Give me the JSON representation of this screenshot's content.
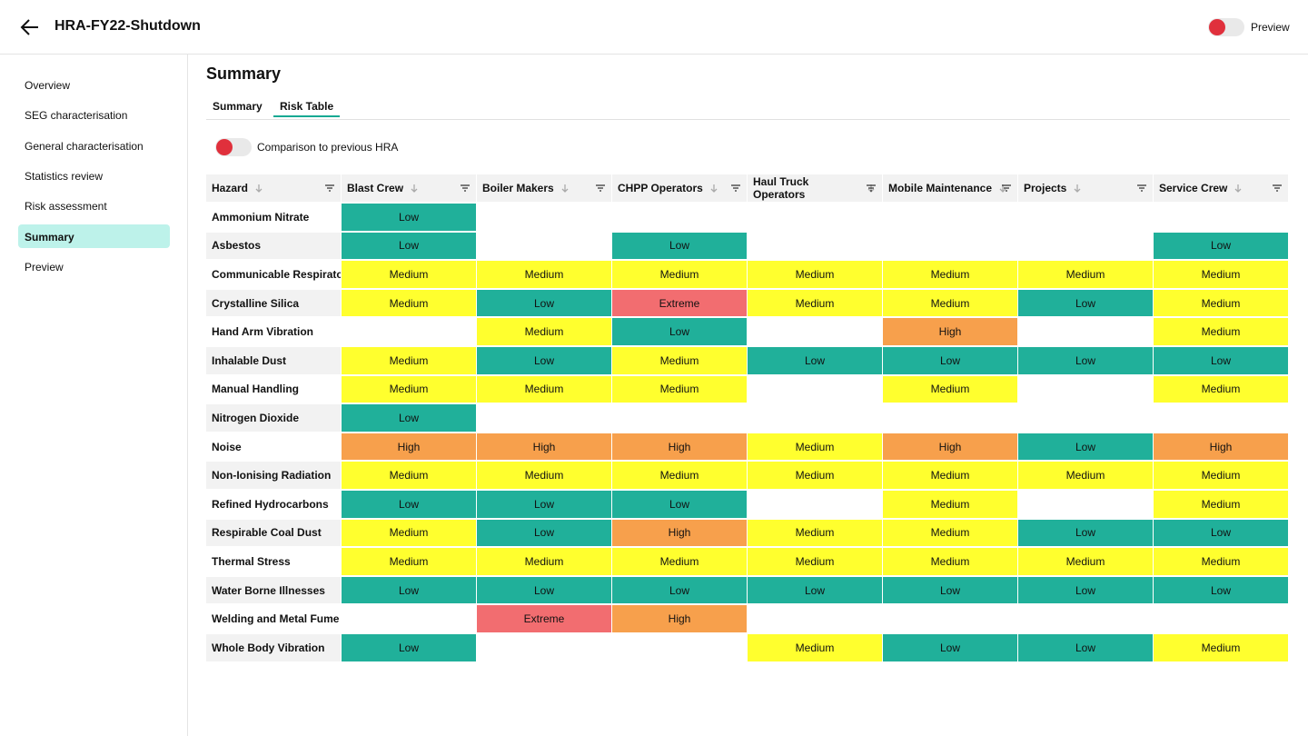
{
  "header": {
    "title": "HRA-FY22-Shutdown",
    "preview_label": "Preview"
  },
  "nav": {
    "items": [
      "Overview",
      "SEG characterisation",
      "General characterisation",
      "Statistics review",
      "Risk assessment",
      "Summary",
      "Preview"
    ],
    "active": 5
  },
  "page": {
    "title": "Summary",
    "tabs": [
      "Summary",
      "Risk Table"
    ],
    "active_tab": 1,
    "comparison_toggle": "Comparison to previous HRA"
  },
  "risk_colors": {
    "Low": "#20b09a",
    "Medium": "#ffff2e",
    "High": "#f7a04c",
    "Extreme": "#f26d70"
  },
  "table": {
    "columns": [
      "Hazard",
      "Blast Crew",
      "Boiler Makers",
      "CHPP Operators",
      "Haul Truck Operators",
      "Mobile Maintenance",
      "Projects",
      "Service Crew"
    ],
    "rows": [
      [
        "Ammonium Nitrate",
        "Low",
        null,
        null,
        null,
        null,
        null,
        null
      ],
      [
        "Asbestos",
        "Low",
        null,
        "Low",
        null,
        null,
        null,
        "Low"
      ],
      [
        "Communicable Respirator",
        "Medium",
        "Medium",
        "Medium",
        "Medium",
        "Medium",
        "Medium",
        "Medium"
      ],
      [
        "Crystalline Silica",
        "Medium",
        "Low",
        "Extreme",
        "Medium",
        "Medium",
        "Low",
        "Medium"
      ],
      [
        "Hand Arm Vibration",
        null,
        "Medium",
        "Low",
        null,
        "High",
        null,
        "Medium"
      ],
      [
        "Inhalable Dust",
        "Medium",
        "Low",
        "Medium",
        "Low",
        "Low",
        "Low",
        "Low"
      ],
      [
        "Manual Handling",
        "Medium",
        "Medium",
        "Medium",
        null,
        "Medium",
        null,
        "Medium"
      ],
      [
        "Nitrogen Dioxide",
        "Low",
        null,
        null,
        null,
        null,
        null,
        null
      ],
      [
        "Noise",
        "High",
        "High",
        "High",
        "Medium",
        "High",
        "Low",
        "High"
      ],
      [
        "Non-Ionising Radiation",
        "Medium",
        "Medium",
        "Medium",
        "Medium",
        "Medium",
        "Medium",
        "Medium"
      ],
      [
        "Refined Hydrocarbons",
        "Low",
        "Low",
        "Low",
        null,
        "Medium",
        null,
        "Medium"
      ],
      [
        "Respirable Coal Dust",
        "Medium",
        "Low",
        "High",
        "Medium",
        "Medium",
        "Low",
        "Low"
      ],
      [
        "Thermal Stress",
        "Medium",
        "Medium",
        "Medium",
        "Medium",
        "Medium",
        "Medium",
        "Medium"
      ],
      [
        "Water Borne Illnesses",
        "Low",
        "Low",
        "Low",
        "Low",
        "Low",
        "Low",
        "Low"
      ],
      [
        "Welding and Metal Fume",
        null,
        "Extreme",
        "High",
        null,
        null,
        null,
        null
      ],
      [
        "Whole Body Vibration",
        "Low",
        null,
        null,
        "Medium",
        "Low",
        "Low",
        "Medium"
      ]
    ]
  }
}
